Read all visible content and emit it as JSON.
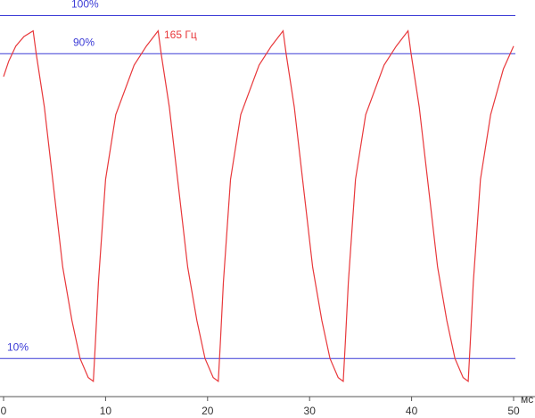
{
  "chart_data": {
    "type": "line",
    "x": [
      0,
      0.5,
      1.2,
      2.0,
      2.9,
      3.2,
      4.0,
      4.9,
      5.8,
      6.7,
      7.5,
      8.3,
      8.8,
      9.0,
      9.3,
      10.0,
      11.0,
      12.8,
      14.0,
      15.15,
      15.45,
      16.25,
      17.15,
      18.05,
      18.95,
      19.75,
      20.55,
      21.05,
      21.25,
      21.55,
      22.25,
      23.25,
      25.05,
      26.25,
      27.4,
      27.7,
      28.5,
      29.4,
      30.3,
      31.2,
      32.0,
      32.8,
      33.3,
      33.5,
      33.8,
      34.5,
      35.5,
      37.3,
      38.5,
      39.65,
      39.95,
      40.75,
      41.65,
      42.55,
      43.45,
      44.25,
      45.05,
      45.55,
      45.75,
      46.05,
      46.75,
      47.75,
      49.0,
      50
    ],
    "series": [
      {
        "name": "165 Гц",
        "color": "#e8383b",
        "values": [
          84,
          88,
          92,
          94.5,
          96,
          90,
          76,
          55,
          34,
          20,
          10,
          5,
          4,
          14,
          30,
          57,
          74,
          87,
          92,
          96,
          90,
          76,
          55,
          34,
          20,
          10,
          5,
          4,
          14,
          30,
          57,
          74,
          87,
          92,
          96,
          90,
          76,
          55,
          34,
          20,
          10,
          5,
          4,
          14,
          30,
          57,
          74,
          87,
          92,
          96,
          90,
          76,
          55,
          34,
          20,
          10,
          5,
          4,
          14,
          30,
          57,
          74,
          86,
          92
        ]
      }
    ],
    "xlim": [
      0,
      50
    ],
    "xticks": [
      0,
      10,
      20,
      30,
      40,
      50
    ],
    "x_label": "мс",
    "ylim": [
      0,
      104
    ],
    "yticks": [
      {
        "value": 10,
        "label": "10%"
      },
      {
        "value": 90,
        "label": "90%"
      },
      {
        "value": 100,
        "label": "100%"
      }
    ],
    "grid": true,
    "grid_color": "#3b3bd6"
  }
}
